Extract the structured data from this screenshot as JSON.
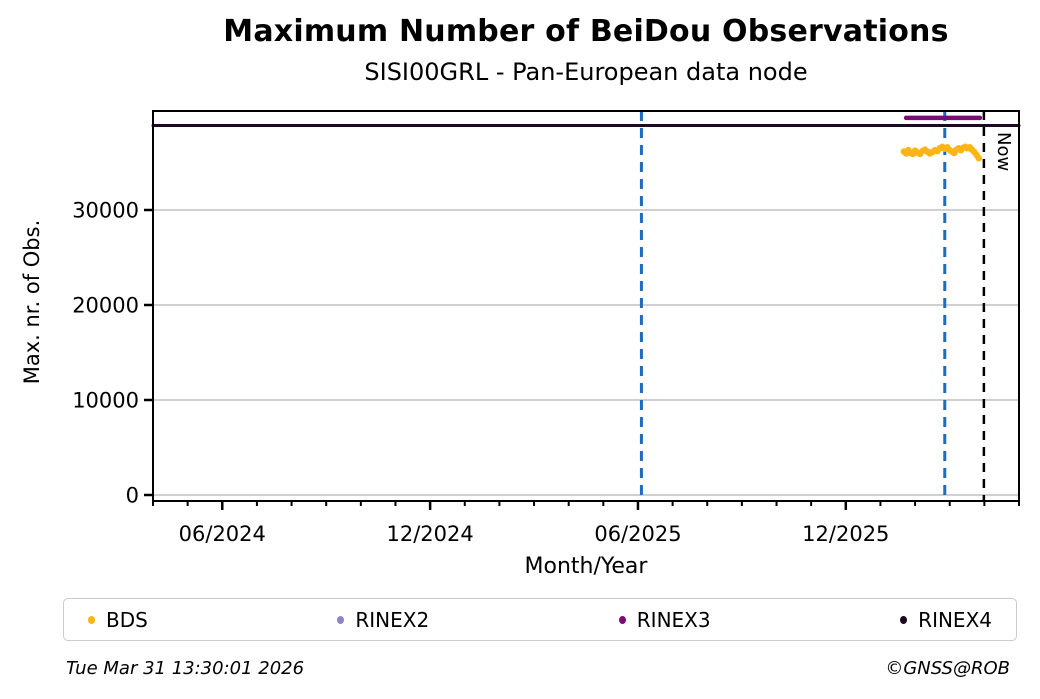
{
  "chart_data": {
    "type": "line",
    "title": "Maximum Number of BeiDou Observations",
    "subtitle": "SISI00GRL - Pan-European data node",
    "xlabel": "Month/Year",
    "ylabel": "Max. nr. of Obs.",
    "x_domain": [
      "2024-04-01",
      "2026-05-01"
    ],
    "ylim": [
      -632,
      40421
    ],
    "grid": "horizontal",
    "grid_color": "#b3b3b3",
    "axis_color": "#000000",
    "yticks": [
      {
        "value": 0,
        "label": "0"
      },
      {
        "value": 10000,
        "label": "10000"
      },
      {
        "value": 20000,
        "label": "20000"
      },
      {
        "value": 30000,
        "label": "30000"
      }
    ],
    "xticks": [
      {
        "date": "2024-06-01",
        "label": "06/2024"
      },
      {
        "date": "2024-12-01",
        "label": "12/2024"
      },
      {
        "date": "2025-06-01",
        "label": "06/2025"
      },
      {
        "date": "2025-12-01",
        "label": "12/2025"
      }
    ],
    "minor_xticks": "monthly",
    "vlines": [
      {
        "date": "2025-06-04",
        "color": "#1E6BBF",
        "style": "dashed"
      },
      {
        "date": "2026-02-25",
        "color": "#1E6BBF",
        "style": "dashed"
      }
    ],
    "now_marker": {
      "date": "2026-03-31 13:30",
      "label": "Now",
      "color": "#000000",
      "style": "dashed"
    },
    "series": [
      {
        "name": "BDS",
        "type": "scatter",
        "color": "#FCB515",
        "marker_radius": 3.3,
        "points": [
          [
            "2026-01-22",
            36150
          ],
          [
            "2026-01-24",
            35950
          ],
          [
            "2026-01-26",
            36300
          ],
          [
            "2026-01-28",
            36000
          ],
          [
            "2026-01-30",
            35900
          ],
          [
            "2026-02-01",
            36250
          ],
          [
            "2026-02-03",
            36050
          ],
          [
            "2026-02-05",
            35900
          ],
          [
            "2026-02-07",
            36200
          ],
          [
            "2026-02-09",
            36350
          ],
          [
            "2026-02-11",
            36150
          ],
          [
            "2026-02-13",
            35950
          ],
          [
            "2026-02-15",
            36100
          ],
          [
            "2026-02-17",
            36300
          ],
          [
            "2026-02-19",
            36200
          ],
          [
            "2026-02-21",
            36500
          ],
          [
            "2026-02-23",
            36650
          ],
          [
            "2026-02-25",
            36450
          ],
          [
            "2026-02-27",
            36600
          ],
          [
            "2026-03-01",
            36300
          ],
          [
            "2026-03-03",
            36150
          ],
          [
            "2026-03-05",
            36000
          ],
          [
            "2026-03-07",
            36350
          ],
          [
            "2026-03-09",
            36500
          ],
          [
            "2026-03-11",
            36300
          ],
          [
            "2026-03-13",
            36550
          ],
          [
            "2026-03-15",
            36650
          ],
          [
            "2026-03-17",
            36500
          ],
          [
            "2026-03-19",
            36600
          ],
          [
            "2026-03-21",
            36350
          ],
          [
            "2026-03-23",
            36100
          ],
          [
            "2026-03-25",
            35800
          ],
          [
            "2026-03-27",
            35450
          ]
        ]
      },
      {
        "name": "RINEX2",
        "type": "scatter",
        "color": "#8C86C6",
        "marker_radius": 3.3,
        "points": []
      },
      {
        "name": "RINEX3",
        "type": "line",
        "color": "#7B0C73",
        "line_width": 4.5,
        "points": [
          [
            "2026-01-24",
            39700
          ],
          [
            "2026-03-28",
            39700
          ]
        ]
      },
      {
        "name": "RINEX4",
        "type": "line",
        "color": "#1C0A23",
        "line_width": 3,
        "points": [
          [
            "2024-04-01",
            38900
          ],
          [
            "2026-05-01",
            38900
          ]
        ]
      }
    ],
    "legend": {
      "position": "bottom",
      "entries": [
        {
          "label": "BDS",
          "color": "#FCB515"
        },
        {
          "label": "RINEX2",
          "color": "#8C86C6"
        },
        {
          "label": "RINEX3",
          "color": "#7B0C73"
        },
        {
          "label": "RINEX4",
          "color": "#1C0A23"
        }
      ]
    }
  },
  "footer": {
    "timestamp": "Tue Mar 31 13:30:01 2026",
    "copyright": "©GNSS@ROB"
  }
}
